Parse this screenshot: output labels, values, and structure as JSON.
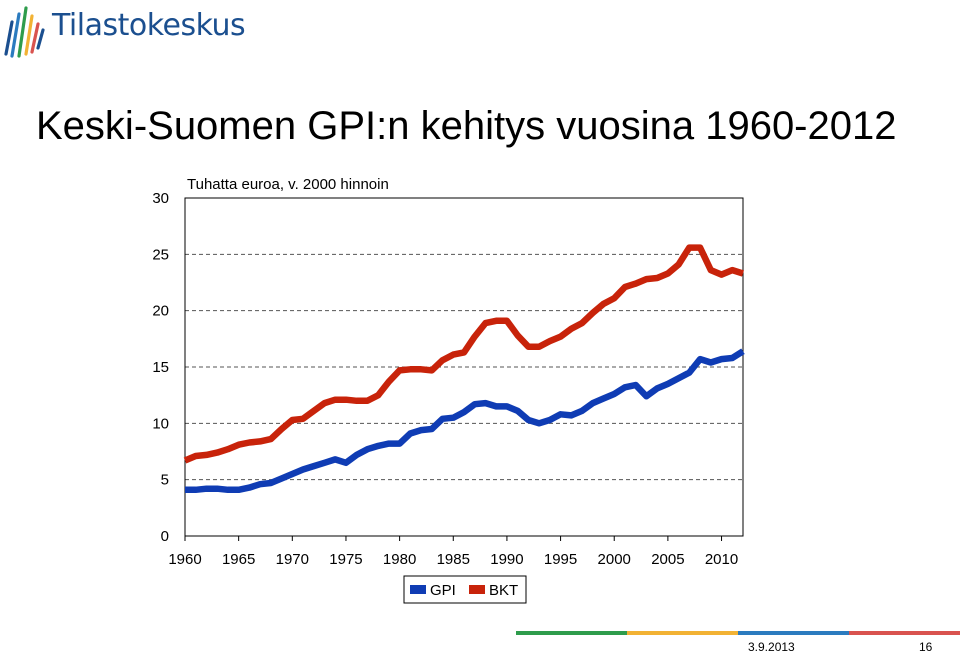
{
  "logo": {
    "text": "Tilastokeskus",
    "mark_icon": "tilastokeskus-logo-icon"
  },
  "slide": {
    "title": "Keski-Suomen GPI:n kehitys vuosina 1960-2012"
  },
  "footer": {
    "date": "3.9.2013",
    "page": "16",
    "bar_colors": [
      "#2e9c4c",
      "#f2b234",
      "#2b7bbf",
      "#d9534f"
    ]
  },
  "chart_data": {
    "type": "line",
    "title": "",
    "unit_label": "Tuhatta euroa, v. 2000 hinnoin",
    "xlabel": "",
    "ylabel": "",
    "xlim": [
      1960,
      2012
    ],
    "ylim": [
      0,
      30
    ],
    "x_ticks": [
      "1960",
      "1965",
      "1970",
      "1975",
      "1980",
      "1985",
      "1990",
      "1995",
      "2000",
      "2005",
      "2010"
    ],
    "y_ticks": [
      "0",
      "5",
      "10",
      "15",
      "20",
      "25",
      "30"
    ],
    "grid": "horizontal-dashed",
    "legend_position": "bottom",
    "x": [
      1960,
      1961,
      1962,
      1963,
      1964,
      1965,
      1966,
      1967,
      1968,
      1969,
      1970,
      1971,
      1972,
      1973,
      1974,
      1975,
      1976,
      1977,
      1978,
      1979,
      1980,
      1981,
      1982,
      1983,
      1984,
      1985,
      1986,
      1987,
      1988,
      1989,
      1990,
      1991,
      1992,
      1993,
      1994,
      1995,
      1996,
      1997,
      1998,
      1999,
      2000,
      2001,
      2002,
      2003,
      2004,
      2005,
      2006,
      2007,
      2008,
      2009,
      2010,
      2011,
      2012
    ],
    "series": [
      {
        "name": "GPI",
        "color": "#0f3cb4",
        "values": [
          4.1,
          4.1,
          4.2,
          4.2,
          4.1,
          4.1,
          4.3,
          4.6,
          4.7,
          5.1,
          5.5,
          5.9,
          6.2,
          6.5,
          6.8,
          6.5,
          7.2,
          7.7,
          8.0,
          8.2,
          8.2,
          9.1,
          9.4,
          9.5,
          10.4,
          10.5,
          11.0,
          11.7,
          11.8,
          11.5,
          11.5,
          11.1,
          10.3,
          10.0,
          10.3,
          10.8,
          10.7,
          11.1,
          11.8,
          12.2,
          12.6,
          13.2,
          13.4,
          12.4,
          13.1,
          13.5,
          14.0,
          14.5,
          15.7,
          15.4,
          15.7,
          15.8,
          16.4
        ]
      },
      {
        "name": "BKT",
        "color": "#c8230a",
        "values": [
          6.7,
          7.1,
          7.2,
          7.4,
          7.7,
          8.1,
          8.3,
          8.4,
          8.6,
          9.5,
          10.3,
          10.4,
          11.1,
          11.8,
          12.1,
          12.1,
          12.0,
          12.0,
          12.5,
          13.7,
          14.7,
          14.8,
          14.8,
          14.7,
          15.6,
          16.1,
          16.3,
          17.7,
          18.9,
          19.1,
          19.1,
          17.8,
          16.8,
          16.8,
          17.3,
          17.7,
          18.4,
          18.9,
          19.8,
          20.6,
          21.1,
          22.1,
          22.4,
          22.8,
          22.9,
          23.3,
          24.1,
          25.6,
          25.6,
          23.6,
          23.2,
          23.6,
          23.3
        ]
      }
    ]
  }
}
